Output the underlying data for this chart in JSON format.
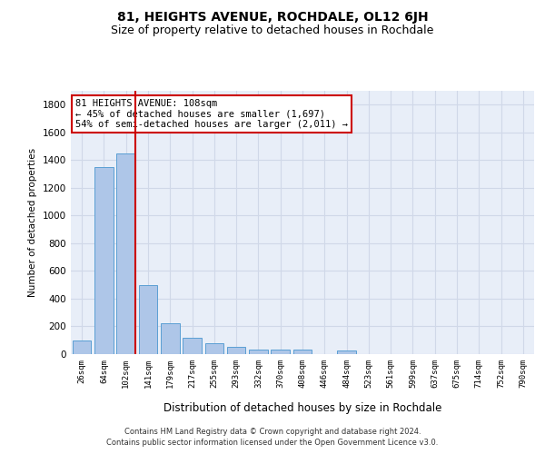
{
  "title": "81, HEIGHTS AVENUE, ROCHDALE, OL12 6JH",
  "subtitle": "Size of property relative to detached houses in Rochdale",
  "xlabel": "Distribution of detached houses by size in Rochdale",
  "ylabel": "Number of detached properties",
  "categories": [
    "26sqm",
    "64sqm",
    "102sqm",
    "141sqm",
    "179sqm",
    "217sqm",
    "255sqm",
    "293sqm",
    "332sqm",
    "370sqm",
    "408sqm",
    "446sqm",
    "484sqm",
    "523sqm",
    "561sqm",
    "599sqm",
    "637sqm",
    "675sqm",
    "714sqm",
    "752sqm",
    "790sqm"
  ],
  "values": [
    100,
    1350,
    1450,
    500,
    220,
    120,
    80,
    55,
    35,
    30,
    30,
    0,
    25,
    0,
    0,
    0,
    0,
    0,
    0,
    0,
    0
  ],
  "bar_color": "#aec6e8",
  "bar_edge_color": "#5a9fd4",
  "redline_index": 2,
  "annotation_text": "81 HEIGHTS AVENUE: 108sqm\n← 45% of detached houses are smaller (1,697)\n54% of semi-detached houses are larger (2,011) →",
  "annotation_box_color": "#cc0000",
  "ylim": [
    0,
    1900
  ],
  "yticks": [
    0,
    200,
    400,
    600,
    800,
    1000,
    1200,
    1400,
    1600,
    1800
  ],
  "grid_color": "#d0d8e8",
  "bg_color": "#e8eef8",
  "footer_line1": "Contains HM Land Registry data © Crown copyright and database right 2024.",
  "footer_line2": "Contains public sector information licensed under the Open Government Licence v3.0.",
  "title_fontsize": 10,
  "subtitle_fontsize": 9,
  "annotation_fontsize": 7.5
}
